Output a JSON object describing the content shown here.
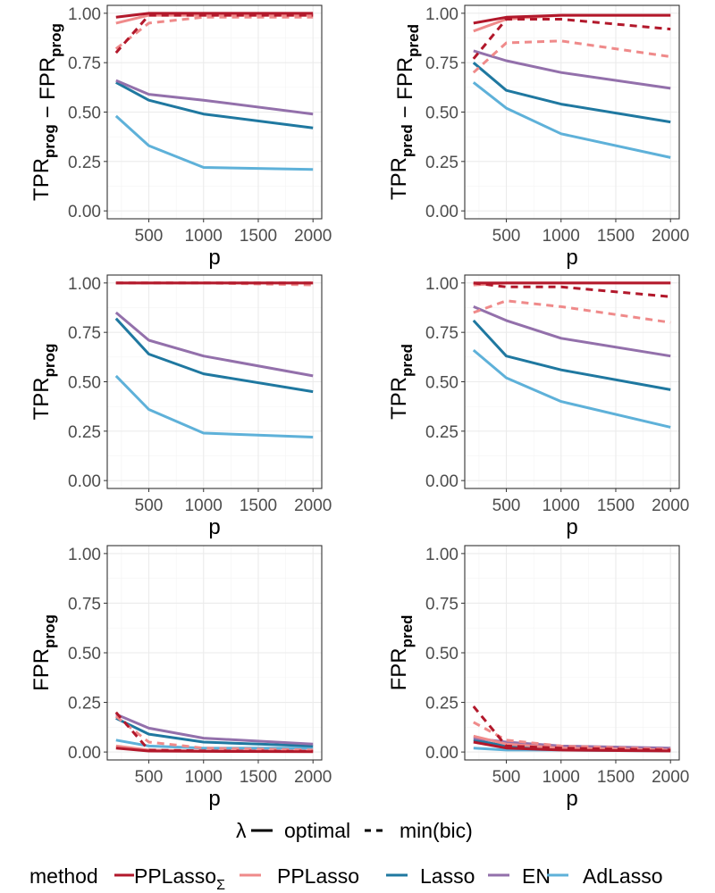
{
  "chart_data": {
    "type": "line",
    "xlabel": "p",
    "x": [
      200,
      500,
      1000,
      2000
    ],
    "xlim": [
      120,
      2080
    ],
    "ylim": [
      -0.04,
      1.04
    ],
    "xticks": [
      500,
      1000,
      1500,
      2000
    ],
    "xtick_labels": [
      "500",
      "1000",
      "1500",
      "2000"
    ],
    "yticks": [
      0,
      0.25,
      0.5,
      0.75,
      1
    ],
    "ytick_labels": [
      "0.00",
      "0.25",
      "0.50",
      "0.75",
      "1.00"
    ],
    "colors": {
      "PPLassoSigma": "#b2182b",
      "PPLasso": "#ef8a8a",
      "Lasso": "#1f78a0",
      "EN": "#9370ab",
      "AdLasso": "#5eb1d9"
    },
    "legend": {
      "lambda_title": "λ",
      "lambda_entries": [
        {
          "label": "optimal",
          "linetype": "solid"
        },
        {
          "label": "min(bic)",
          "linetype": "dashed"
        }
      ],
      "method_title": "method",
      "method_entries": [
        {
          "key": "PPLassoSigma",
          "label": "PPLasso",
          "subscript": "Σ"
        },
        {
          "key": "PPLasso",
          "label": "PPLasso",
          "subscript": ""
        },
        {
          "key": "Lasso",
          "label": "Lasso",
          "subscript": ""
        },
        {
          "key": "EN",
          "label": "EN",
          "subscript": ""
        },
        {
          "key": "AdLasso",
          "label": "AdLasso",
          "subscript": ""
        }
      ]
    },
    "panels": [
      {
        "id": "tpr-fpr-prog",
        "ylabel_parts": [
          [
            "TPR",
            "prog"
          ],
          [
            "FPR",
            "prog"
          ]
        ],
        "series": [
          {
            "method": "PPLassoSigma",
            "linetype": "solid",
            "values": [
              0.98,
              1.0,
              1.0,
              1.0
            ]
          },
          {
            "method": "PPLassoSigma",
            "linetype": "dashed",
            "values": [
              0.8,
              0.99,
              0.99,
              0.99
            ]
          },
          {
            "method": "PPLasso",
            "linetype": "solid",
            "values": [
              0.95,
              0.99,
              0.99,
              0.99
            ]
          },
          {
            "method": "PPLasso",
            "linetype": "dashed",
            "values": [
              0.82,
              0.95,
              0.98,
              0.98
            ]
          },
          {
            "method": "EN",
            "linetype": "solid",
            "values": [
              0.66,
              0.59,
              0.56,
              0.49
            ]
          },
          {
            "method": "Lasso",
            "linetype": "solid",
            "values": [
              0.65,
              0.56,
              0.49,
              0.42
            ]
          },
          {
            "method": "AdLasso",
            "linetype": "solid",
            "values": [
              0.48,
              0.33,
              0.22,
              0.21
            ]
          }
        ]
      },
      {
        "id": "tpr-fpr-pred",
        "ylabel_parts": [
          [
            "TPR",
            "pred"
          ],
          [
            "FPR",
            "pred"
          ]
        ],
        "series": [
          {
            "method": "PPLassoSigma",
            "linetype": "solid",
            "values": [
              0.95,
              0.98,
              0.99,
              0.99
            ]
          },
          {
            "method": "PPLassoSigma",
            "linetype": "dashed",
            "values": [
              0.77,
              0.97,
              0.97,
              0.92
            ]
          },
          {
            "method": "PPLasso",
            "linetype": "solid",
            "values": [
              0.91,
              0.97,
              0.99,
              0.99
            ]
          },
          {
            "method": "PPLasso",
            "linetype": "dashed",
            "values": [
              0.7,
              0.85,
              0.86,
              0.78
            ]
          },
          {
            "method": "EN",
            "linetype": "solid",
            "values": [
              0.81,
              0.76,
              0.7,
              0.62
            ]
          },
          {
            "method": "Lasso",
            "linetype": "solid",
            "values": [
              0.75,
              0.61,
              0.54,
              0.45
            ]
          },
          {
            "method": "AdLasso",
            "linetype": "solid",
            "values": [
              0.65,
              0.52,
              0.39,
              0.27
            ]
          }
        ]
      },
      {
        "id": "tpr-prog",
        "ylabel_parts": [
          [
            "TPR",
            "prog"
          ]
        ],
        "series": [
          {
            "method": "PPLassoSigma",
            "linetype": "solid",
            "values": [
              1.0,
              1.0,
              1.0,
              1.0
            ]
          },
          {
            "method": "PPLassoSigma",
            "linetype": "dashed",
            "values": [
              1.0,
              1.0,
              1.0,
              1.0
            ]
          },
          {
            "method": "PPLasso",
            "linetype": "solid",
            "values": [
              1.0,
              1.0,
              1.0,
              1.0
            ]
          },
          {
            "method": "PPLasso",
            "linetype": "dashed",
            "values": [
              1.0,
              1.0,
              1.0,
              0.99
            ]
          },
          {
            "method": "EN",
            "linetype": "solid",
            "values": [
              0.85,
              0.71,
              0.63,
              0.53
            ]
          },
          {
            "method": "Lasso",
            "linetype": "solid",
            "values": [
              0.82,
              0.64,
              0.54,
              0.45
            ]
          },
          {
            "method": "AdLasso",
            "linetype": "solid",
            "values": [
              0.53,
              0.36,
              0.24,
              0.22
            ]
          }
        ]
      },
      {
        "id": "tpr-pred",
        "ylabel_parts": [
          [
            "TPR",
            "pred"
          ]
        ],
        "series": [
          {
            "method": "PPLassoSigma",
            "linetype": "solid",
            "values": [
              1.0,
              1.0,
              1.0,
              1.0
            ]
          },
          {
            "method": "PPLassoSigma",
            "linetype": "dashed",
            "values": [
              1.0,
              0.98,
              0.98,
              0.93
            ]
          },
          {
            "method": "PPLasso",
            "linetype": "solid",
            "values": [
              0.99,
              1.0,
              1.0,
              1.0
            ]
          },
          {
            "method": "PPLasso",
            "linetype": "dashed",
            "values": [
              0.85,
              0.91,
              0.88,
              0.8
            ]
          },
          {
            "method": "EN",
            "linetype": "solid",
            "values": [
              0.88,
              0.81,
              0.72,
              0.63
            ]
          },
          {
            "method": "Lasso",
            "linetype": "solid",
            "values": [
              0.81,
              0.63,
              0.56,
              0.46
            ]
          },
          {
            "method": "AdLasso",
            "linetype": "solid",
            "values": [
              0.66,
              0.52,
              0.4,
              0.27
            ]
          }
        ]
      },
      {
        "id": "fpr-prog",
        "ylabel_parts": [
          [
            "FPR",
            "prog"
          ]
        ],
        "series": [
          {
            "method": "PPLassoSigma",
            "linetype": "solid",
            "values": [
              0.02,
              0.005,
              0.003,
              0.002
            ]
          },
          {
            "method": "PPLassoSigma",
            "linetype": "dashed",
            "values": [
              0.2,
              0.01,
              0.006,
              0.004
            ]
          },
          {
            "method": "PPLasso",
            "linetype": "solid",
            "values": [
              0.03,
              0.01,
              0.005,
              0.004
            ]
          },
          {
            "method": "PPLasso",
            "linetype": "dashed",
            "values": [
              0.18,
              0.05,
              0.02,
              0.01
            ]
          },
          {
            "method": "EN",
            "linetype": "solid",
            "values": [
              0.19,
              0.12,
              0.07,
              0.04
            ]
          },
          {
            "method": "Lasso",
            "linetype": "solid",
            "values": [
              0.17,
              0.09,
              0.05,
              0.03
            ]
          },
          {
            "method": "AdLasso",
            "linetype": "solid",
            "values": [
              0.06,
              0.03,
              0.02,
              0.02
            ]
          }
        ]
      },
      {
        "id": "fpr-pred",
        "ylabel_parts": [
          [
            "FPR",
            "pred"
          ]
        ],
        "series": [
          {
            "method": "PPLassoSigma",
            "linetype": "solid",
            "values": [
              0.05,
              0.02,
              0.01,
              0.005
            ]
          },
          {
            "method": "PPLassoSigma",
            "linetype": "dashed",
            "values": [
              0.23,
              0.03,
              0.02,
              0.01
            ]
          },
          {
            "method": "PPLasso",
            "linetype": "solid",
            "values": [
              0.08,
              0.04,
              0.02,
              0.01
            ]
          },
          {
            "method": "PPLasso",
            "linetype": "dashed",
            "values": [
              0.15,
              0.06,
              0.03,
              0.015
            ]
          },
          {
            "method": "EN",
            "linetype": "solid",
            "values": [
              0.07,
              0.05,
              0.03,
              0.02
            ]
          },
          {
            "method": "Lasso",
            "linetype": "solid",
            "values": [
              0.06,
              0.03,
              0.02,
              0.01
            ]
          },
          {
            "method": "AdLasso",
            "linetype": "solid",
            "values": [
              0.02,
              0.01,
              0.01,
              0.005
            ]
          }
        ]
      }
    ]
  }
}
